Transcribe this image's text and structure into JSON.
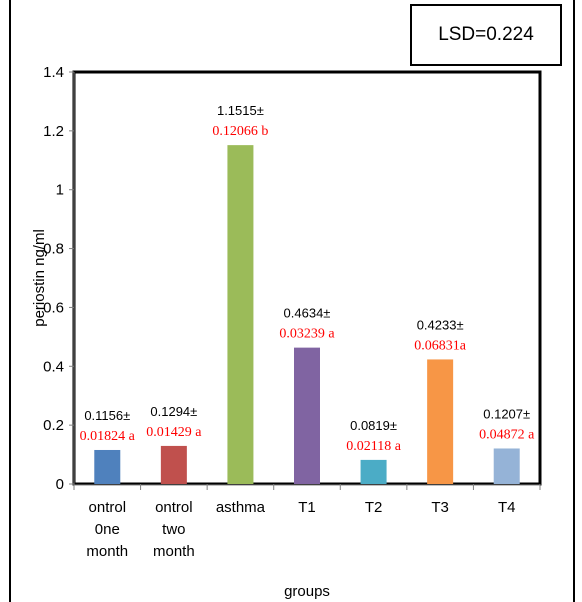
{
  "lsd_label": "LSD=0.224",
  "chart_data": {
    "type": "bar",
    "xlabel": "groups",
    "ylabel": "periostin ng/ml",
    "ylim": [
      0,
      1.4
    ],
    "yticks": [
      "0",
      "0.2",
      "0.4",
      "0.6",
      "0.8",
      "1",
      "1.2",
      "1.4"
    ],
    "grid": false,
    "categories": [
      [
        "ontrol",
        "0ne",
        "month"
      ],
      [
        "ontrol",
        "two",
        "month"
      ],
      [
        "asthma"
      ],
      [
        "T1"
      ],
      [
        "T2"
      ],
      [
        "T3"
      ],
      [
        "T4"
      ]
    ],
    "values": [
      0.1156,
      0.1294,
      1.1515,
      0.4634,
      0.0819,
      0.4233,
      0.1207
    ],
    "colors": [
      "#4f81bd",
      "#c0504d",
      "#9bbb59",
      "#8064a2",
      "#4bacc6",
      "#f79646",
      "#95b3d7"
    ],
    "annotations": [
      [
        "0.1156±",
        "0.01824 a"
      ],
      [
        "0.1294±",
        "0.01429 a"
      ],
      [
        "1.1515±",
        "0.12066 b"
      ],
      [
        "0.4634±",
        "0.03239 a"
      ],
      [
        "0.0819±",
        "0.02118 a"
      ],
      [
        "0.4233±",
        "0.06831a"
      ],
      [
        "0.1207±",
        "0.04872 a"
      ]
    ],
    "annotation_color_mean": "#000000",
    "annotation_color_sd": "#ff0000"
  }
}
